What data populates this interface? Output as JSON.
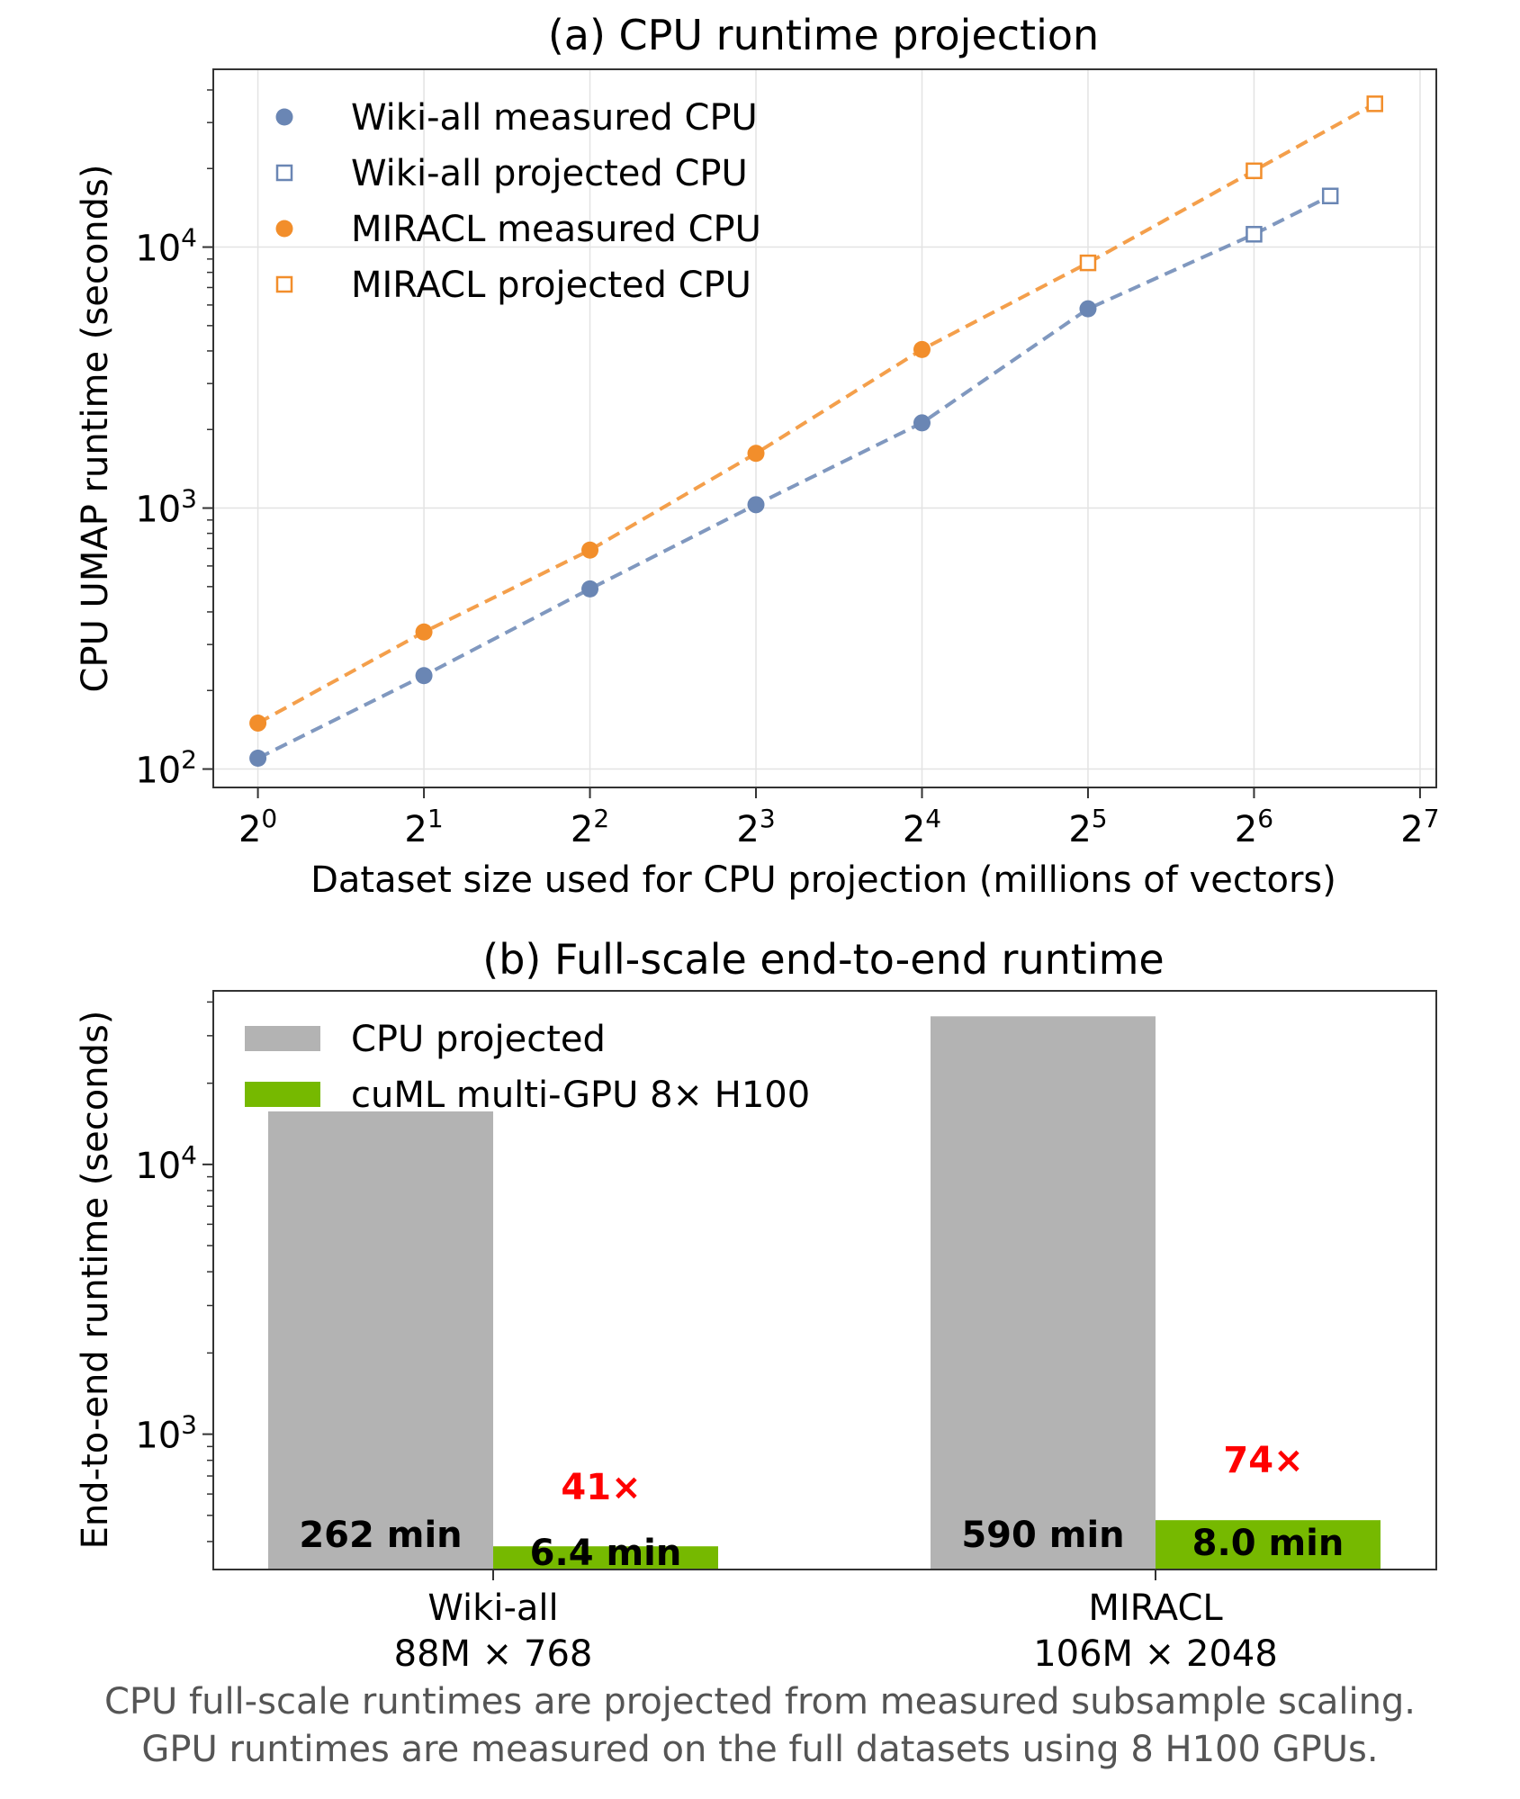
{
  "chart_data": [
    {
      "type": "line",
      "title": "(a) CPU runtime projection",
      "xlabel": "Dataset size used for CPU projection (millions of vectors)",
      "ylabel": "CPU UMAP runtime (seconds)",
      "x_scale": "log2",
      "y_scale": "log10",
      "xlim": [
        0.83,
        137
      ],
      "ylim": [
        85,
        48000
      ],
      "x_ticks": [
        {
          "base": "2",
          "exp": "0",
          "value": 1
        },
        {
          "base": "2",
          "exp": "1",
          "value": 2
        },
        {
          "base": "2",
          "exp": "2",
          "value": 4
        },
        {
          "base": "2",
          "exp": "3",
          "value": 8
        },
        {
          "base": "2",
          "exp": "4",
          "value": 16
        },
        {
          "base": "2",
          "exp": "5",
          "value": 32
        },
        {
          "base": "2",
          "exp": "6",
          "value": 64
        },
        {
          "base": "2",
          "exp": "7",
          "value": 128
        }
      ],
      "y_ticks": [
        {
          "base": "10",
          "exp": "2",
          "value": 100
        },
        {
          "base": "10",
          "exp": "3",
          "value": 1000
        },
        {
          "base": "10",
          "exp": "4",
          "value": 10000
        }
      ],
      "grid": true,
      "legend_position": "upper-left",
      "series": [
        {
          "name": "Wiki-all measured CPU",
          "marker": "filled-circle",
          "color": "#6a86b4",
          "x": [
            1,
            2,
            4,
            8,
            16,
            32
          ],
          "y": [
            110,
            228,
            490,
            1030,
            2120,
            5800
          ]
        },
        {
          "name": "Wiki-all projected CPU",
          "marker": "open-square",
          "color": "#6a86b4",
          "x": [
            64,
            88
          ],
          "y": [
            11200,
            15700
          ]
        },
        {
          "name": "MIRACL measured CPU",
          "marker": "filled-circle",
          "color": "#f28e2b",
          "x": [
            1,
            2,
            4,
            8,
            16
          ],
          "y": [
            150,
            335,
            690,
            1620,
            4050
          ]
        },
        {
          "name": "MIRACL projected CPU",
          "marker": "open-square",
          "color": "#f28e2b",
          "x": [
            32,
            64,
            106
          ],
          "y": [
            8700,
            19600,
            35400
          ]
        }
      ],
      "trend_lines": [
        {
          "series": "Wiki-all",
          "color": "#6a86b4",
          "x": [
            1,
            2,
            4,
            8,
            16,
            32,
            64,
            88
          ],
          "y": [
            110,
            228,
            490,
            1030,
            2120,
            5800,
            11200,
            15700
          ]
        },
        {
          "series": "MIRACL",
          "color": "#f28e2b",
          "x": [
            1,
            2,
            4,
            8,
            16,
            32,
            64,
            106
          ],
          "y": [
            150,
            335,
            690,
            1620,
            4050,
            8700,
            19600,
            35400
          ]
        }
      ]
    },
    {
      "type": "bar",
      "title": "(b) Full-scale end-to-end runtime",
      "xlabel": "",
      "ylabel": "End-to-end runtime (seconds)",
      "y_scale": "log10",
      "ylim": [
        315,
        44000
      ],
      "y_ticks": [
        {
          "base": "10",
          "exp": "3",
          "value": 1000
        },
        {
          "base": "10",
          "exp": "4",
          "value": 10000
        }
      ],
      "grid": false,
      "legend_position": "upper-left",
      "categories": [
        {
          "name": "Wiki-all",
          "dims": "88M × 768"
        },
        {
          "name": "MIRACL",
          "dims": "106M × 2048"
        }
      ],
      "series": [
        {
          "name": "CPU projected",
          "color": "#b3b3b3",
          "values": [
            15720,
            35400
          ],
          "bar_labels": [
            "262 min",
            "590 min"
          ]
        },
        {
          "name": "cuML multi-GPU 8× H100",
          "color": "#76b900",
          "values": [
            384,
            480
          ],
          "bar_labels": [
            "6.4 min",
            "8.0 min"
          ]
        }
      ],
      "speedups": [
        "41×",
        "74×"
      ],
      "speedup_color": "#ff0000"
    }
  ],
  "caption": {
    "line1": "CPU full-scale runtimes are projected from measured subsample scaling.",
    "line2": "GPU runtimes are measured on the full datasets using 8 H100 GPUs."
  }
}
